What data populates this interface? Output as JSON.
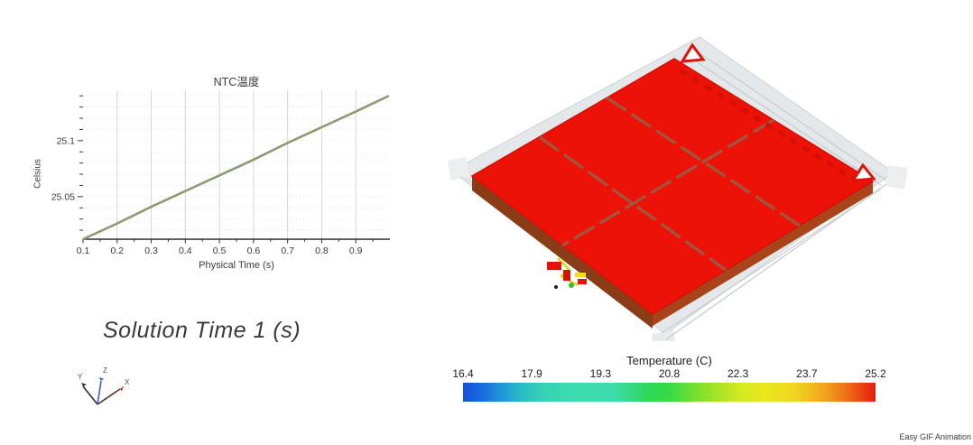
{
  "chart": {
    "title": "NTC温度",
    "xlabel": "Physical Time (s)",
    "ylabel": "Celsius"
  },
  "chart_data": {
    "type": "line",
    "title": "NTC温度",
    "xlabel": "Physical Time (s)",
    "ylabel": "Celsius",
    "legend": "none",
    "grid": true,
    "line_color": "#8d9b74",
    "xlim": [
      0.1,
      1.0
    ],
    "ylim": [
      25.012,
      25.145
    ],
    "x_tick_labels": [
      "0.1",
      "0.2",
      "0.3",
      "0.4",
      "0.5",
      "0.6",
      "0.7",
      "0.8",
      "0.9"
    ],
    "x_major_ticks": [
      0.1,
      0.2,
      0.3,
      0.4,
      0.5,
      0.6,
      0.7,
      0.8,
      0.9
    ],
    "x_minor_ticks": [
      0.15,
      0.25,
      0.35,
      0.45,
      0.55,
      0.65,
      0.75,
      0.85,
      0.95
    ],
    "y_minor_step": 0.01,
    "y_labeled_ticks": {
      "25.05": "25.05",
      "25.1": "25.1"
    },
    "series": [
      {
        "name": "NTC温度",
        "points": [
          [
            0.1,
            25.012
          ],
          [
            0.2,
            25.026
          ],
          [
            0.3,
            25.041
          ],
          [
            0.4,
            25.055
          ],
          [
            0.5,
            25.069
          ],
          [
            0.6,
            25.083
          ],
          [
            0.7,
            25.098
          ],
          [
            0.8,
            25.112
          ],
          [
            0.9,
            25.126
          ],
          [
            0.997,
            25.14
          ]
        ]
      }
    ]
  },
  "scene": {
    "solution_time": "Solution Time 1 (s)",
    "triad": {
      "x": "X",
      "y": "Y",
      "z": "Z"
    }
  },
  "colorbar": {
    "title": "Temperature (C)",
    "min": 16.4,
    "max": 25.2,
    "tick_labels": [
      "16.4",
      "17.9",
      "19.3",
      "20.8",
      "22.3",
      "23.7",
      "25.2"
    ],
    "colors": [
      "#1550dc",
      "#209cd4",
      "#3cdcb0",
      "#2cd856",
      "#a2e426",
      "#e8e81e",
      "#f0a01c",
      "#ee7c18",
      "#e61e0e"
    ]
  },
  "watermark": "Easy GIF Animation"
}
